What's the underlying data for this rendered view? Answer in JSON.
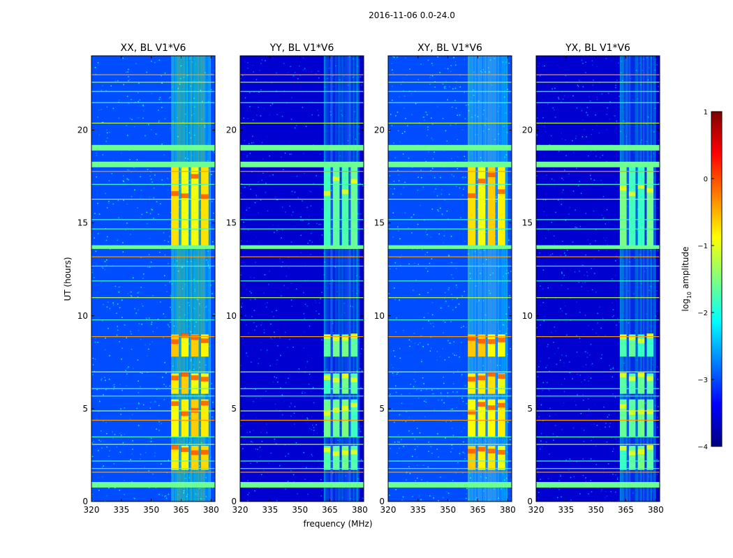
{
  "figure": {
    "suptitle": "2016-11-06 0.0-24.0",
    "xlabel": "frequency (MHz)",
    "ylabel": "UT (hours)"
  },
  "colorbar": {
    "label": "log",
    "label_sub": "10",
    "label_suffix": " amplitude",
    "range": [
      -4,
      1
    ],
    "ticks": [
      "1",
      "0",
      "−1",
      "−2",
      "−3",
      "−4"
    ],
    "tick_values": [
      1,
      0,
      -1,
      -2,
      -3,
      -4
    ],
    "colormap": "jet",
    "jet_stops": [
      "#00007f",
      "#0000ff",
      "#007fff",
      "#00ffff",
      "#7fff7f",
      "#ffff00",
      "#ff7f00",
      "#ff0000",
      "#7f0000"
    ]
  },
  "chart_data": {
    "type": "heatmap",
    "description": "Dynamic spectra of baseline V1*V6 per polarization; color = log10 amplitude",
    "x_range": [
      320,
      382
    ],
    "y_range": [
      0,
      24
    ],
    "x_ticks": [
      320,
      335,
      350,
      365,
      380
    ],
    "x_tick_labels": [
      "320",
      "335",
      "350",
      "365",
      "380"
    ],
    "y_ticks": [
      0,
      5,
      10,
      15,
      20
    ],
    "y_tick_labels": [
      "0",
      "5",
      "10",
      "15",
      "20"
    ],
    "rfi_band_mhz": [
      360,
      380
    ],
    "panels": [
      {
        "title": "XX, BL V1*V6",
        "rfi_start_mhz": 360,
        "rfi_level": -0.6,
        "background_level": -3.0
      },
      {
        "title": "YY, BL V1*V6",
        "rfi_start_mhz": 362,
        "rfi_level": -1.5,
        "background_level": -3.6
      },
      {
        "title": "XY, BL V1*V6",
        "rfi_start_mhz": 360,
        "rfi_level": -0.6,
        "background_level": -3.0
      },
      {
        "title": "YX, BL V1*V6",
        "rfi_start_mhz": 362,
        "rfi_level": -1.5,
        "background_level": -3.6
      }
    ],
    "rfi_time_blocks_hours": [
      [
        1.7,
        3.0
      ],
      [
        3.5,
        5.5
      ],
      [
        5.8,
        6.9
      ],
      [
        7.8,
        9.0
      ],
      [
        13.6,
        18.2
      ]
    ],
    "flagged_time_bands_hours": [
      [
        0.75,
        1.05
      ],
      [
        13.6,
        13.8
      ],
      [
        18.0,
        18.3
      ],
      [
        18.9,
        19.2
      ]
    ],
    "flagged_time_lines_hours": [
      1.6,
      1.8,
      2.2,
      3.1,
      3.5,
      4.4,
      4.9,
      5.7,
      6.1,
      7.0,
      8.9,
      9.8,
      11.0,
      11.9,
      12.7,
      13.2,
      14.7,
      15.2,
      16.3,
      17.1,
      17.8,
      20.4,
      21.5,
      22.1,
      22.6,
      23.0
    ]
  }
}
